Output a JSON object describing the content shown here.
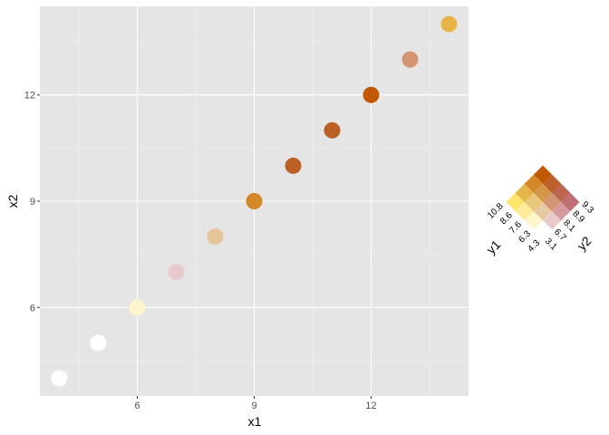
{
  "chart_data": {
    "type": "scatter",
    "xlabel": "x1",
    "ylabel": "x2",
    "xlim": [
      3.5,
      14.5
    ],
    "ylim": [
      3.5,
      14.5
    ],
    "xticks": [
      6,
      9,
      12
    ],
    "yticks": [
      6,
      9,
      12
    ],
    "grid": true,
    "points": [
      {
        "x": 4,
        "y": 4,
        "color": "#FFFFFF"
      },
      {
        "x": 5,
        "y": 5,
        "color": "#FFFFFF"
      },
      {
        "x": 6,
        "y": 6,
        "color": "#FFF5CC"
      },
      {
        "x": 7,
        "y": 7,
        "color": "#E8CACC"
      },
      {
        "x": 8,
        "y": 8,
        "color": "#E6C59A"
      },
      {
        "x": 9,
        "y": 9,
        "color": "#D38825"
      },
      {
        "x": 10,
        "y": 10,
        "color": "#BA6024"
      },
      {
        "x": 11,
        "y": 11,
        "color": "#BA6024"
      },
      {
        "x": 12,
        "y": 12,
        "color": "#C05800"
      },
      {
        "x": 13,
        "y": 13,
        "color": "#D49574"
      },
      {
        "x": 14,
        "y": 14,
        "color": "#E6B54A"
      }
    ],
    "legend": {
      "placement": "right",
      "type": "bivariate",
      "y1_title": "y1",
      "y2_title": "y2",
      "y1_breaks": [
        "4.3",
        "6.3",
        "7.6",
        "8.6",
        "10.8"
      ],
      "y2_breaks": [
        "3.1",
        "6.7",
        "8.1",
        "8.9",
        "9.3"
      ],
      "palette": [
        [
          "#FFFFFF",
          "#E8CACC",
          "#D49AA0",
          "#C07075"
        ],
        [
          "#FFF5CC",
          "#E6C9A0",
          "#D49574",
          "#BC6650"
        ],
        [
          "#FFEB9A",
          "#E8C67A",
          "#D5964C",
          "#BA6028"
        ],
        [
          "#FFE56B",
          "#E6B54A",
          "#D38825",
          "#C05800"
        ]
      ]
    }
  }
}
